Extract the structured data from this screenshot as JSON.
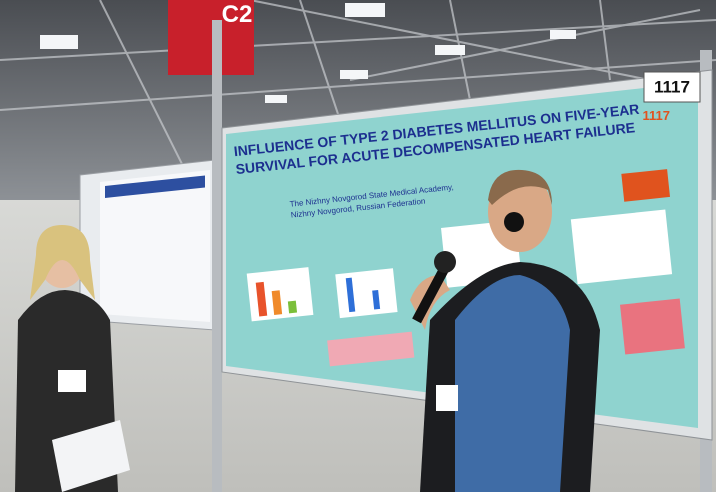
{
  "signs": {
    "hall": "C2",
    "board_number": "1117"
  },
  "poster": {
    "number": "1117",
    "title": [
      "INFLUENCE OF TYPE 2 DIABETES MELLITUS ON FIVE-YEAR",
      "SURVIVAL FOR ACUTE DECOMPENSATED HEART FAILURE"
    ],
    "affiliation": [
      "The Nizhny Novgorod State Medical Academy,",
      "Nizhny Novgorod, Russian Federation"
    ]
  }
}
